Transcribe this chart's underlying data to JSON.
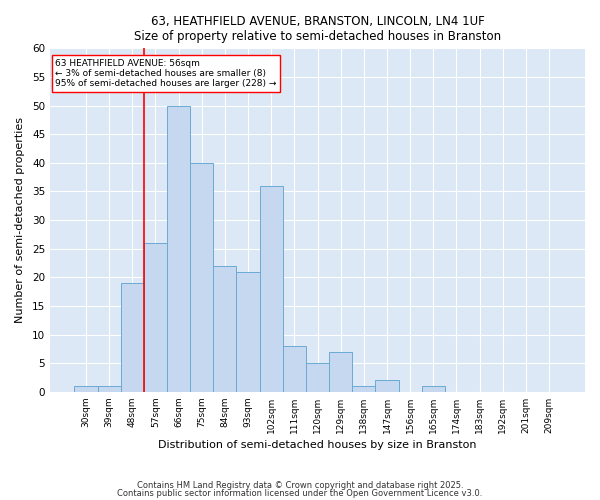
{
  "title1": "63, HEATHFIELD AVENUE, BRANSTON, LINCOLN, LN4 1UF",
  "title2": "Size of property relative to semi-detached houses in Branston",
  "xlabel": "Distribution of semi-detached houses by size in Branston",
  "ylabel": "Number of semi-detached properties",
  "categories": [
    "30sqm",
    "39sqm",
    "48sqm",
    "57sqm",
    "66sqm",
    "75sqm",
    "84sqm",
    "93sqm",
    "102sqm",
    "111sqm",
    "120sqm",
    "129sqm",
    "138sqm",
    "147sqm",
    "156sqm",
    "165sqm",
    "174sqm",
    "183sqm",
    "192sqm",
    "201sqm",
    "209sqm"
  ],
  "values": [
    1,
    1,
    19,
    26,
    50,
    40,
    22,
    21,
    36,
    8,
    5,
    7,
    1,
    2,
    0,
    1,
    0,
    0,
    0,
    0,
    0
  ],
  "bar_color": "#c5d8f0",
  "bar_edge_color": "#6aaad4",
  "fig_bg_color": "#ffffff",
  "plot_bg_color": "#dce8f5",
  "grid_color": "#ffffff",
  "red_line_x": 2.5,
  "annotation_title": "63 HEATHFIELD AVENUE: 56sqm",
  "annotation_line2": "← 3% of semi-detached houses are smaller (8)",
  "annotation_line3": "95% of semi-detached houses are larger (228) →",
  "ylim": [
    0,
    60
  ],
  "yticks": [
    0,
    5,
    10,
    15,
    20,
    25,
    30,
    35,
    40,
    45,
    50,
    55,
    60
  ],
  "footnote1": "Contains HM Land Registry data © Crown copyright and database right 2025.",
  "footnote2": "Contains public sector information licensed under the Open Government Licence v3.0."
}
